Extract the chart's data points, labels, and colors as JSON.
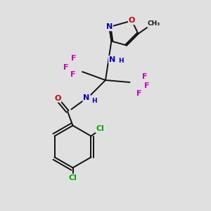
{
  "background_color": "#e0e0e0",
  "bond_color": "#111111",
  "colors": {
    "N": "#0000cc",
    "O": "#cc0000",
    "F": "#cc00cc",
    "Cl": "#00aa00",
    "C": "#111111",
    "H": "#0000cc"
  },
  "figsize": [
    3.0,
    3.0
  ],
  "dpi": 100
}
